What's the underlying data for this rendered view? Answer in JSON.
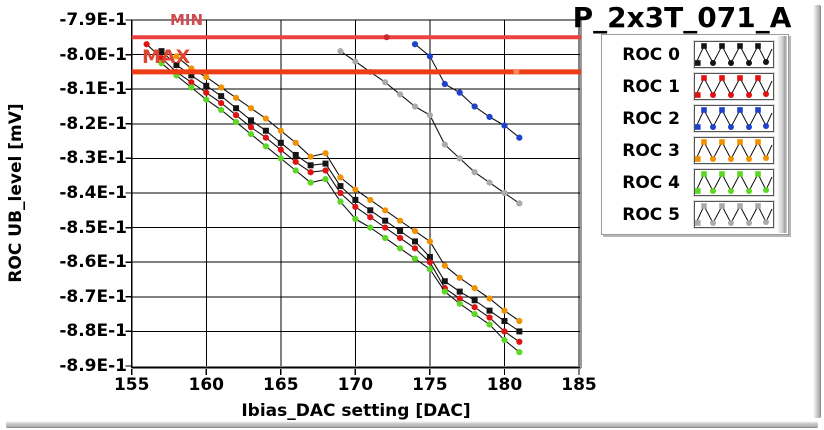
{
  "chart_data": {
    "type": "line",
    "title": "P_2x3T_071_A",
    "xlabel": "Ibias_DAC setting [DAC]",
    "ylabel": "ROC UB_level [mV]",
    "xlim": [
      155,
      185
    ],
    "ylim": [
      -8.9,
      -7.9
    ],
    "y_unit": "1E-1 mV (values shown in scientific notation)",
    "grid": true,
    "legend_position": "top-right",
    "x_ticks": [
      155,
      160,
      165,
      170,
      175,
      180,
      185
    ],
    "y_ticks": [
      {
        "label": "-7.9E-1",
        "value": -7.9
      },
      {
        "label": "-8.0E-1",
        "value": -8.0
      },
      {
        "label": "-8.1E-1",
        "value": -8.1
      },
      {
        "label": "-8.2E-1",
        "value": -8.2
      },
      {
        "label": "-8.3E-1",
        "value": -8.3
      },
      {
        "label": "-8.4E-1",
        "value": -8.4
      },
      {
        "label": "-8.5E-1",
        "value": -8.5
      },
      {
        "label": "-8.6E-1",
        "value": -8.6
      },
      {
        "label": "-8.7E-1",
        "value": -8.7
      },
      {
        "label": "-8.8E-1",
        "value": -8.8
      },
      {
        "label": "-8.9E-1",
        "value": -8.9
      }
    ],
    "reference_lines": [
      {
        "name": "MIN",
        "value": -7.95,
        "color": "#eb4141",
        "width": 4,
        "marker_x": 172.1,
        "marker_color": "#c62a2a"
      },
      {
        "name": "MAX",
        "value": -8.05,
        "color": "#ed3d14",
        "width": 5,
        "marker_x": 180.8,
        "marker_color": "#ff8a65"
      }
    ],
    "series": [
      {
        "name": "ROC 0",
        "color": "#151515",
        "marker": "square",
        "line_color": "#111111",
        "points": [
          [
            157,
            -7.99
          ],
          [
            158,
            -8.03
          ],
          [
            159,
            -8.06
          ],
          [
            160,
            -8.09
          ],
          [
            161,
            -8.12
          ],
          [
            162,
            -8.155
          ],
          [
            163,
            -8.19
          ],
          [
            164,
            -8.22
          ],
          [
            165,
            -8.255
          ],
          [
            166,
            -8.29
          ],
          [
            167,
            -8.32
          ],
          [
            168,
            -8.315
          ],
          [
            169,
            -8.38
          ],
          [
            170,
            -8.42
          ],
          [
            171,
            -8.45
          ],
          [
            172,
            -8.48
          ],
          [
            173,
            -8.51
          ],
          [
            174,
            -8.54
          ],
          [
            175,
            -8.585
          ],
          [
            176,
            -8.655
          ],
          [
            177,
            -8.685
          ],
          [
            178,
            -8.71
          ],
          [
            179,
            -8.74
          ],
          [
            180,
            -8.77
          ],
          [
            181,
            -8.8
          ]
        ]
      },
      {
        "name": "ROC 1",
        "color": "#e01212",
        "marker": "circle",
        "line_color": "#111111",
        "points": [
          [
            156,
            -7.97
          ],
          [
            157,
            -8.01
          ],
          [
            158,
            -8.05
          ],
          [
            159,
            -8.08
          ],
          [
            160,
            -8.11
          ],
          [
            161,
            -8.14
          ],
          [
            162,
            -8.175
          ],
          [
            163,
            -8.21
          ],
          [
            164,
            -8.24
          ],
          [
            165,
            -8.275
          ],
          [
            166,
            -8.31
          ],
          [
            167,
            -8.34
          ],
          [
            168,
            -8.335
          ],
          [
            169,
            -8.4
          ],
          [
            170,
            -8.44
          ],
          [
            171,
            -8.47
          ],
          [
            172,
            -8.5
          ],
          [
            173,
            -8.53
          ],
          [
            174,
            -8.56
          ],
          [
            175,
            -8.6
          ],
          [
            176,
            -8.675
          ],
          [
            177,
            -8.705
          ],
          [
            178,
            -8.73
          ],
          [
            179,
            -8.76
          ],
          [
            180,
            -8.8
          ],
          [
            181,
            -8.83
          ]
        ]
      },
      {
        "name": "ROC 2",
        "color": "#1e42cc",
        "marker": "circle",
        "line_color": "#111111",
        "points": [
          [
            174,
            -7.97
          ],
          [
            175,
            -8.005
          ],
          [
            176,
            -8.085
          ],
          [
            177,
            -8.11
          ],
          [
            178,
            -8.15
          ],
          [
            179,
            -8.18
          ],
          [
            180,
            -8.205
          ],
          [
            181,
            -8.24
          ]
        ]
      },
      {
        "name": "ROC 3",
        "color": "#f09200",
        "marker": "circle",
        "line_color": "#111111",
        "points": [
          [
            158,
            -8.005
          ],
          [
            159,
            -8.04
          ],
          [
            160,
            -8.065
          ],
          [
            161,
            -8.095
          ],
          [
            162,
            -8.125
          ],
          [
            163,
            -8.155
          ],
          [
            164,
            -8.185
          ],
          [
            165,
            -8.22
          ],
          [
            166,
            -8.255
          ],
          [
            167,
            -8.295
          ],
          [
            168,
            -8.285
          ],
          [
            169,
            -8.355
          ],
          [
            170,
            -8.39
          ],
          [
            171,
            -8.42
          ],
          [
            172,
            -8.45
          ],
          [
            173,
            -8.48
          ],
          [
            174,
            -8.51
          ],
          [
            175,
            -8.54
          ],
          [
            176,
            -8.61
          ],
          [
            177,
            -8.645
          ],
          [
            178,
            -8.675
          ],
          [
            179,
            -8.705
          ],
          [
            180,
            -8.74
          ],
          [
            181,
            -8.77
          ]
        ]
      },
      {
        "name": "ROC 4",
        "color": "#5cd723",
        "marker": "circle",
        "line_color": "#111111",
        "points": [
          [
            157,
            -8.025
          ],
          [
            158,
            -8.06
          ],
          [
            159,
            -8.095
          ],
          [
            160,
            -8.13
          ],
          [
            161,
            -8.16
          ],
          [
            162,
            -8.195
          ],
          [
            163,
            -8.23
          ],
          [
            164,
            -8.265
          ],
          [
            165,
            -8.3
          ],
          [
            166,
            -8.335
          ],
          [
            167,
            -8.37
          ],
          [
            168,
            -8.36
          ],
          [
            169,
            -8.425
          ],
          [
            170,
            -8.475
          ],
          [
            171,
            -8.5
          ],
          [
            172,
            -8.53
          ],
          [
            173,
            -8.56
          ],
          [
            174,
            -8.59
          ],
          [
            175,
            -8.62
          ],
          [
            176,
            -8.685
          ],
          [
            177,
            -8.72
          ],
          [
            178,
            -8.75
          ],
          [
            179,
            -8.78
          ],
          [
            180,
            -8.825
          ],
          [
            181,
            -8.86
          ]
        ]
      },
      {
        "name": "ROC 5",
        "color": "#ababab",
        "marker": "circle",
        "line_color": "#111111",
        "points": [
          [
            169,
            -7.99
          ],
          [
            170,
            -8.02
          ],
          [
            171,
            -8.05
          ],
          [
            172,
            -8.08
          ],
          [
            173,
            -8.115
          ],
          [
            174,
            -8.15
          ],
          [
            175,
            -8.175
          ],
          [
            176,
            -8.26
          ],
          [
            177,
            -8.3
          ],
          [
            178,
            -8.34
          ],
          [
            179,
            -8.37
          ],
          [
            180,
            -8.4
          ],
          [
            181,
            -8.43
          ]
        ]
      }
    ],
    "frame_color": "#000000",
    "frame_right_color": "#9a9a9a",
    "grid_color": "#000000",
    "background": "#ffffff"
  }
}
